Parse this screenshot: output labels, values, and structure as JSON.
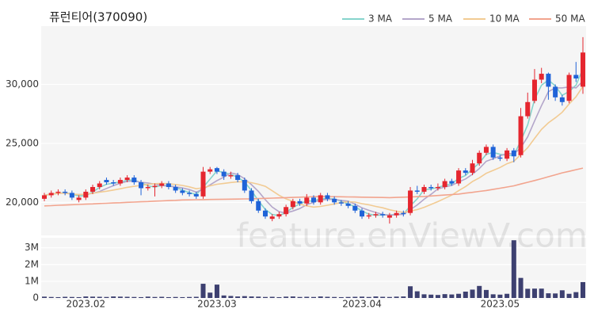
{
  "chart_data": [
    {
      "type": "candlestick",
      "title": "퓨런티어(370090)",
      "watermark": "feature.enViewV.com",
      "categories": [
        null,
        null,
        null,
        null,
        null,
        null,
        "2023.02",
        null,
        null,
        null,
        null,
        null,
        null,
        null,
        null,
        null,
        null,
        null,
        null,
        null,
        null,
        null,
        null,
        null,
        null,
        "2023.03",
        null,
        null,
        null,
        null,
        null,
        null,
        null,
        null,
        null,
        null,
        null,
        null,
        null,
        null,
        null,
        null,
        null,
        null,
        null,
        null,
        "2023.04",
        null,
        null,
        null,
        null,
        null,
        null,
        null,
        null,
        null,
        null,
        null,
        null,
        null,
        null,
        null,
        null,
        null,
        null,
        null,
        "2023.05",
        null,
        null,
        null,
        null,
        null,
        null,
        null,
        null,
        null,
        null,
        null,
        null
      ],
      "open": [
        20300,
        20600,
        20800,
        20900,
        20800,
        20200,
        20400,
        20900,
        21300,
        21900,
        21700,
        21600,
        21900,
        22100,
        21700,
        21200,
        21300,
        21400,
        21600,
        21300,
        21000,
        20800,
        20700,
        20500,
        22600,
        22900,
        22600,
        22200,
        22300,
        21900,
        21000,
        20100,
        19300,
        18600,
        18800,
        19000,
        19600,
        20100,
        19900,
        20400,
        20000,
        20600,
        20300,
        20000,
        19900,
        19700,
        19300,
        18800,
        18900,
        19000,
        18700,
        18900,
        19100,
        19100,
        21000,
        20900,
        21300,
        21200,
        21300,
        21800,
        21600,
        22700,
        22500,
        23300,
        24200,
        24700,
        23800,
        23700,
        24400,
        24000,
        27300,
        28600,
        30400,
        30900,
        29800,
        28900,
        28600,
        30800,
        29800
      ],
      "high": [
        20800,
        21000,
        21100,
        21100,
        21000,
        20600,
        21100,
        21500,
        21800,
        22100,
        21900,
        22100,
        22300,
        22300,
        21900,
        21500,
        21600,
        21800,
        21800,
        21500,
        21200,
        21000,
        20900,
        23000,
        23000,
        23000,
        22800,
        22600,
        22500,
        22100,
        21200,
        20300,
        19500,
        19000,
        19200,
        19800,
        20300,
        20300,
        20700,
        20600,
        20800,
        20800,
        20500,
        20200,
        20100,
        19900,
        19500,
        19100,
        19200,
        19200,
        19100,
        19300,
        19300,
        21300,
        21400,
        21500,
        21500,
        21600,
        22000,
        22000,
        22900,
        22900,
        23600,
        24400,
        24900,
        24900,
        24000,
        24600,
        24600,
        28000,
        29300,
        31300,
        31400,
        31000,
        30000,
        29100,
        31000,
        31900,
        34000
      ],
      "low": [
        20100,
        20400,
        20600,
        20600,
        20200,
        20000,
        20200,
        20700,
        21100,
        21500,
        21400,
        21400,
        21700,
        21500,
        20600,
        21000,
        20500,
        21200,
        21100,
        20800,
        20600,
        20500,
        20300,
        20300,
        22400,
        22400,
        21900,
        22000,
        21700,
        20800,
        19900,
        19100,
        18600,
        18400,
        18600,
        18800,
        19400,
        19700,
        19700,
        19800,
        19800,
        20100,
        19800,
        19700,
        19500,
        19100,
        18600,
        18600,
        18700,
        18700,
        18200,
        18700,
        18800,
        18900,
        20700,
        20700,
        21000,
        21000,
        21100,
        21400,
        21400,
        22300,
        22300,
        23100,
        24000,
        23600,
        23500,
        23500,
        23400,
        23800,
        27100,
        28400,
        30100,
        28700,
        28600,
        28200,
        28400,
        30200,
        29200
      ],
      "close": [
        20600,
        20800,
        20900,
        20800,
        20400,
        20400,
        20900,
        21300,
        21600,
        21700,
        21600,
        21900,
        22100,
        21700,
        21200,
        21300,
        21400,
        21600,
        21300,
        21000,
        20800,
        20700,
        20500,
        22600,
        22800,
        22600,
        22200,
        22300,
        21900,
        21000,
        20100,
        19300,
        18800,
        18800,
        19000,
        19600,
        20100,
        19900,
        20400,
        20000,
        20600,
        20300,
        20000,
        19900,
        19700,
        19300,
        18800,
        18900,
        19000,
        18900,
        18900,
        19100,
        19000,
        21000,
        20900,
        21300,
        21200,
        21300,
        21800,
        21600,
        22700,
        22500,
        23300,
        24200,
        24700,
        23800,
        23700,
        24400,
        23900,
        27300,
        28500,
        30400,
        30900,
        29800,
        28900,
        28500,
        30800,
        30500,
        32700
      ],
      "up_color": "#e5262f",
      "down_color": "#1f63d8",
      "series": [
        {
          "name": "3 MA",
          "color": "#86d4cc",
          "values": [
            20600,
            20700,
            20770,
            20830,
            20700,
            20530,
            20570,
            20870,
            21270,
            21530,
            21630,
            21730,
            21870,
            21900,
            21670,
            21400,
            21300,
            21430,
            21430,
            21300,
            21030,
            20830,
            20670,
            21270,
            21970,
            22670,
            22530,
            22370,
            22130,
            21730,
            21000,
            20130,
            19400,
            18970,
            18870,
            19130,
            19570,
            19870,
            20130,
            20100,
            20330,
            20300,
            20300,
            20070,
            19870,
            19630,
            19270,
            19000,
            18900,
            18930,
            18930,
            18970,
            19000,
            19700,
            20300,
            21070,
            21130,
            21270,
            21430,
            21570,
            22030,
            22270,
            22830,
            23330,
            24070,
            24230,
            24070,
            23970,
            24000,
            25200,
            26570,
            28730,
            29930,
            30370,
            29870,
            29070,
            29400,
            29930,
            31330
          ]
        },
        {
          "name": "5 MA",
          "color": "#b4a6ca",
          "values": [
            20600,
            20700,
            20770,
            20780,
            20700,
            20660,
            20680,
            20760,
            20920,
            21180,
            21420,
            21620,
            21780,
            21800,
            21700,
            21640,
            21540,
            21440,
            21360,
            21320,
            21220,
            21080,
            20860,
            21120,
            21480,
            21840,
            22140,
            22500,
            22360,
            22000,
            21500,
            20920,
            20220,
            19600,
            19200,
            19100,
            19260,
            19480,
            19800,
            20000,
            20200,
            20240,
            20260,
            20160,
            20100,
            19840,
            19540,
            19320,
            19140,
            18980,
            18900,
            18960,
            18980,
            19380,
            19780,
            20260,
            20680,
            21140,
            21300,
            21440,
            21720,
            21980,
            22380,
            22860,
            23480,
            23700,
            23940,
            24160,
            24100,
            24620,
            25560,
            26900,
            28200,
            29380,
            29700,
            29700,
            29780,
            29700,
            30280
          ]
        },
        {
          "name": "10 MA",
          "color": "#f2cb93",
          "values": [
            20600,
            20700,
            20770,
            20780,
            20700,
            20650,
            20690,
            20760,
            20860,
            20940,
            21040,
            21150,
            21270,
            21360,
            21440,
            21530,
            21580,
            21610,
            21580,
            21510,
            21430,
            21310,
            21150,
            21240,
            21400,
            21530,
            21610,
            21680,
            21740,
            21740,
            21670,
            21530,
            21360,
            20980,
            20600,
            20300,
            20090,
            19850,
            19700,
            19600,
            19650,
            19750,
            19870,
            19980,
            20050,
            20020,
            19890,
            19790,
            19650,
            19540,
            19370,
            19250,
            19150,
            19260,
            19380,
            19580,
            19820,
            20060,
            20340,
            20610,
            20990,
            21330,
            21760,
            22080,
            22460,
            22710,
            22960,
            23270,
            23480,
            24050,
            24630,
            25420,
            26180,
            26740,
            27160,
            27630,
            28340,
            28950,
            29830
          ]
        },
        {
          "name": "50 MA",
          "color": "#f2a48e",
          "values": [
            19700,
            19720,
            19750,
            19770,
            19800,
            19820,
            19850,
            19870,
            19900,
            19920,
            19950,
            19970,
            20000,
            20020,
            20050,
            20070,
            20100,
            20120,
            20150,
            20170,
            20200,
            20210,
            20220,
            20230,
            20240,
            20250,
            20260,
            20270,
            20280,
            20290,
            20300,
            20320,
            20340,
            20360,
            20380,
            20400,
            20420,
            20440,
            20460,
            20480,
            20500,
            20490,
            20480,
            20470,
            20460,
            20450,
            20440,
            20430,
            20420,
            20410,
            20400,
            20420,
            20440,
            20460,
            20480,
            20500,
            20540,
            20580,
            20620,
            20660,
            20700,
            20780,
            20850,
            20930,
            21000,
            21100,
            21200,
            21300,
            21400,
            21550,
            21700,
            21850,
            22000,
            22170,
            22330,
            22500,
            22630,
            22770,
            22900
          ]
        }
      ],
      "ylim": [
        17200,
        34800
      ],
      "yticks": [
        {
          "value": 20000,
          "label": "20,000"
        },
        {
          "value": 25000,
          "label": "25,000"
        },
        {
          "value": 30000,
          "label": "30,000"
        }
      ],
      "grid": true,
      "legend": "top-right"
    },
    {
      "type": "bar",
      "color": "#3d4070",
      "values": [
        80000,
        60000,
        50000,
        70000,
        60000,
        50000,
        90000,
        80000,
        70000,
        60000,
        90000,
        80000,
        70000,
        60000,
        50000,
        80000,
        60000,
        70000,
        50000,
        60000,
        50000,
        60000,
        70000,
        850000,
        320000,
        800000,
        150000,
        120000,
        90000,
        110000,
        90000,
        80000,
        60000,
        70000,
        50000,
        80000,
        90000,
        60000,
        70000,
        60000,
        90000,
        70000,
        60000,
        50000,
        60000,
        70000,
        80000,
        60000,
        90000,
        70000,
        60000,
        80000,
        90000,
        700000,
        400000,
        220000,
        200000,
        180000,
        230000,
        210000,
        250000,
        380000,
        500000,
        720000,
        480000,
        220000,
        200000,
        250000,
        3450000,
        1200000,
        550000,
        560000,
        560000,
        280000,
        270000,
        460000,
        250000,
        350000,
        950000
      ],
      "ylim": [
        0,
        3600000
      ],
      "yticks": [
        0,
        {
          "value": 1000000,
          "label": "1M"
        },
        {
          "value": 2000000,
          "label": "2M"
        },
        {
          "value": 3000000,
          "label": "3M"
        }
      ],
      "grid": true
    }
  ]
}
